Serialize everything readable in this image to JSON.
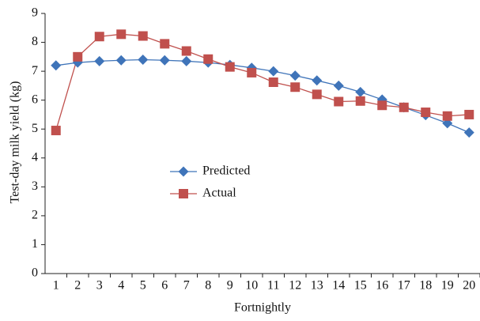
{
  "chart_data": {
    "type": "line",
    "x_label": "Fortnightly",
    "y_label": "Test-day milk yield (kg)",
    "categories": [
      "1",
      "2",
      "3",
      "4",
      "5",
      "6",
      "7",
      "8",
      "9",
      "10",
      "11",
      "12",
      "13",
      "14",
      "15",
      "16",
      "17",
      "18",
      "19",
      "20"
    ],
    "series": [
      {
        "name": "Predicted",
        "color": "#3f74b9",
        "marker": "diamond",
        "values": [
          7.2,
          7.3,
          7.35,
          7.38,
          7.4,
          7.38,
          7.35,
          7.3,
          7.22,
          7.12,
          7.0,
          6.85,
          6.68,
          6.5,
          6.28,
          6.02,
          5.75,
          5.48,
          5.2,
          4.88
        ]
      },
      {
        "name": "Actual",
        "color": "#c0504d",
        "marker": "square",
        "values": [
          4.95,
          7.5,
          8.2,
          8.28,
          8.22,
          7.95,
          7.7,
          7.42,
          7.15,
          6.95,
          6.62,
          6.45,
          6.2,
          5.95,
          5.97,
          5.82,
          5.75,
          5.58,
          5.45,
          5.5
        ]
      }
    ],
    "ylim": [
      0,
      9
    ],
    "yticks": [
      0,
      1,
      2,
      3,
      4,
      5,
      6,
      7,
      8,
      9
    ],
    "grid": false,
    "legend": "center-left"
  }
}
